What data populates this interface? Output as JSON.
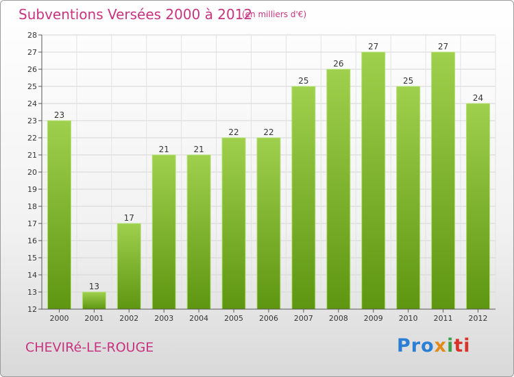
{
  "header": {
    "title": "Subventions Versées 2000 à 2012",
    "subtitle": "(en milliers d'€)"
  },
  "footer": {
    "commune": "CHEVIRé-LE-ROUGE",
    "logo_parts": [
      "Pro",
      "x",
      "i",
      "ti"
    ]
  },
  "colors": {
    "bar_top": "#9fd04d",
    "bar_bottom": "#5e9611",
    "title": "#c8337f"
  },
  "chart_data": {
    "type": "bar",
    "title": "Subventions Versées 2000 à 2012",
    "subtitle": "(en milliers d'€)",
    "categories": [
      "2000",
      "2001",
      "2002",
      "2003",
      "2004",
      "2005",
      "2006",
      "2007",
      "2008",
      "2009",
      "2010",
      "2011",
      "2012"
    ],
    "values": [
      23,
      13,
      17,
      21,
      21,
      22,
      22,
      25,
      26,
      27,
      25,
      27,
      24
    ],
    "ylim": [
      12,
      28
    ],
    "yticks": [
      12,
      13,
      14,
      15,
      16,
      17,
      18,
      19,
      20,
      21,
      22,
      23,
      24,
      25,
      26,
      27,
      28
    ],
    "grid": true,
    "data_labels": true
  }
}
